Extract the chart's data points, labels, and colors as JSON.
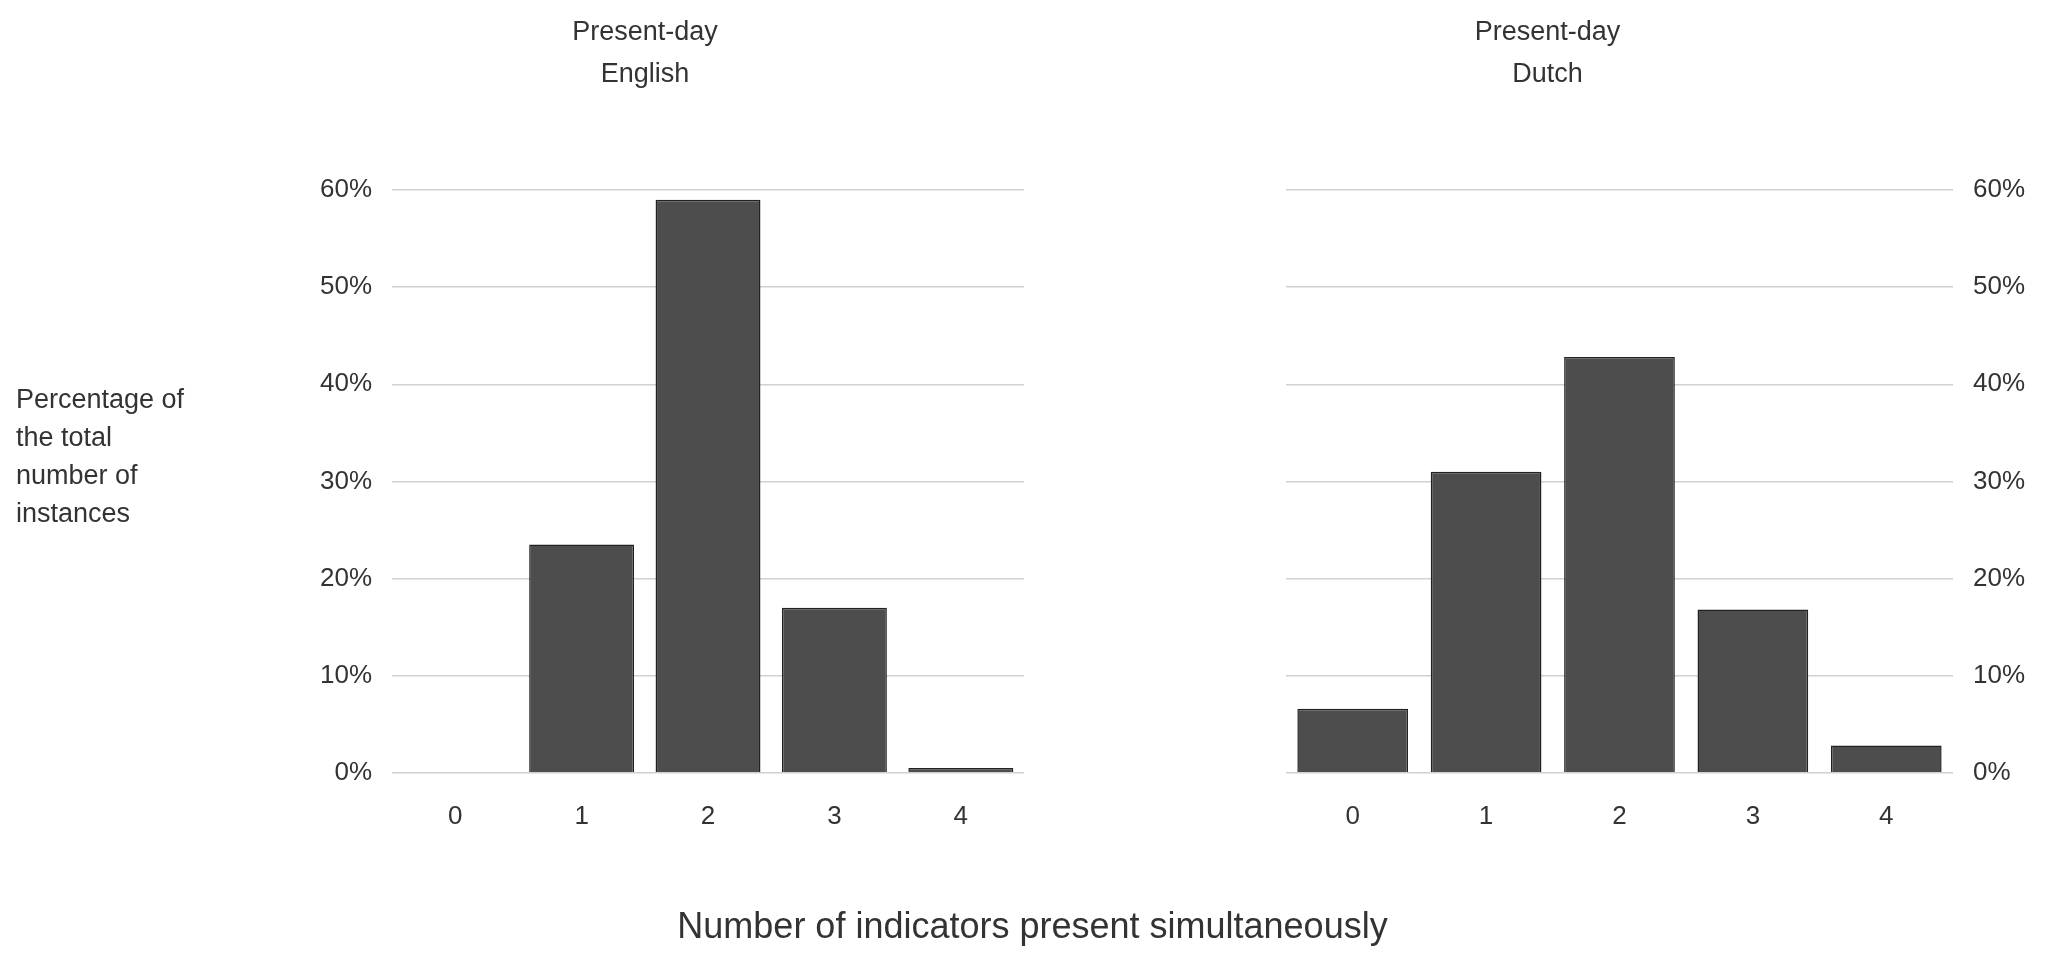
{
  "chart_data": [
    {
      "type": "bar",
      "title": "Present-day English",
      "ylabel": "Percentage of the total number of instances",
      "categories": [
        "0",
        "1",
        "2",
        "3",
        "4"
      ],
      "series": [
        {
          "color": "#4d4d4d",
          "values": [
            0,
            23.5,
            59,
            17,
            0.5
          ]
        }
      ],
      "ylim": [
        0,
        60
      ],
      "yticks": [
        {
          "value": 0,
          "label": "0%"
        },
        {
          "value": 10,
          "label": "10%"
        },
        {
          "value": 20,
          "label": "20%"
        },
        {
          "value": 30,
          "label": "30%"
        },
        {
          "value": 40,
          "label": "40%"
        },
        {
          "value": 50,
          "label": "50%"
        },
        {
          "value": 60,
          "label": "60%"
        }
      ],
      "grid": "y",
      "legend": false
    },
    {
      "type": "bar",
      "title": "Present-day Dutch",
      "xlabel": "Number of indicators present simultaneously",
      "categories": [
        "0",
        "1",
        "2",
        "3",
        "4"
      ],
      "series": [
        {
          "color": "#4d4d4d",
          "values": [
            6.6,
            31,
            42.8,
            16.8,
            2.8
          ],
          "axis": "y2"
        }
      ],
      "y2lim": [
        0,
        60
      ],
      "y2ticks": [
        {
          "value": 0,
          "label": "0%"
        },
        {
          "value": 10,
          "label": "10%"
        },
        {
          "value": 20,
          "label": "20%"
        },
        {
          "value": 30,
          "label": "30%"
        },
        {
          "value": 40,
          "label": "40%"
        },
        {
          "value": 50,
          "label": "50%"
        },
        {
          "value": 60,
          "label": "60%"
        }
      ],
      "grid": "y",
      "legend": false
    }
  ]
}
